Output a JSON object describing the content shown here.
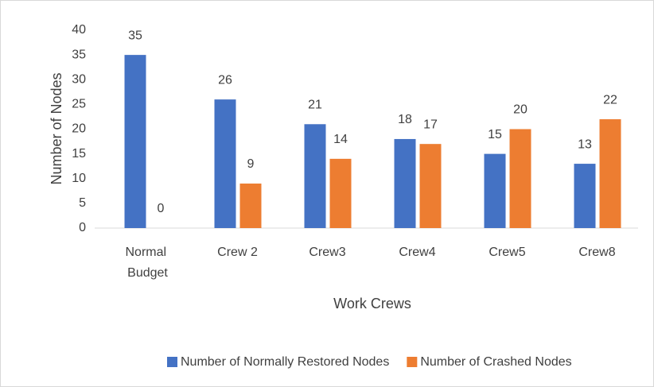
{
  "chart_data": {
    "type": "bar",
    "categories": [
      "Normal Budget",
      "Crew 2",
      "Crew3",
      "Crew4",
      "Crew5",
      "Crew8"
    ],
    "series": [
      {
        "name": "Number of Normally Restored Nodes",
        "color": "#4472c4",
        "values": [
          35,
          26,
          21,
          18,
          15,
          13
        ]
      },
      {
        "name": "Number of Crashed Nodes",
        "color": "#ed7d31",
        "values": [
          0,
          9,
          14,
          17,
          20,
          22
        ]
      }
    ],
    "x_label": "Work Crews",
    "y_label": "Number of Nodes",
    "ylim": [
      0,
      40
    ],
    "yticks": [
      0,
      5,
      10,
      15,
      20,
      25,
      30,
      35,
      40
    ],
    "grid": false,
    "legend": "bottom"
  }
}
